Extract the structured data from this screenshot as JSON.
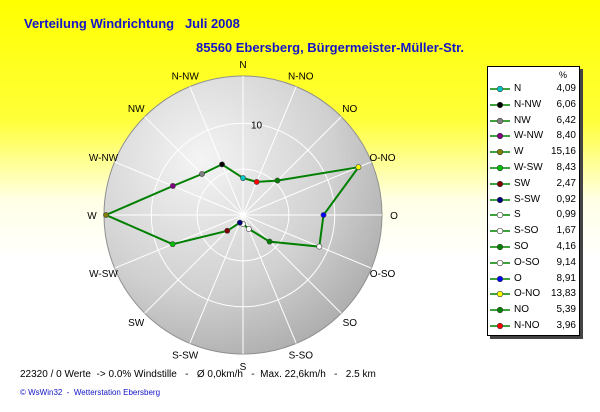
{
  "title": "Verteilung Windrichtung   Juli 2008",
  "subtitle": "85560 Ebersberg, Bürgermeister-Müller-Str.",
  "chart_data": {
    "type": "radar",
    "directions": [
      "N",
      "N-NO",
      "NO",
      "O-NO",
      "O",
      "O-SO",
      "SO",
      "S-SO",
      "S",
      "S-SW",
      "SW",
      "W-SW",
      "W",
      "W-NW",
      "NW",
      "N-NW"
    ],
    "values": [
      4.09,
      3.96,
      5.39,
      13.83,
      8.91,
      9.14,
      4.16,
      1.67,
      0.99,
      0.92,
      2.47,
      8.43,
      15.16,
      8.4,
      6.42,
      6.06
    ],
    "rmax": 15.16,
    "ring_label": "10",
    "grid": true,
    "legend_position": "right",
    "line_color": "#008000"
  },
  "legend": {
    "unit": "%",
    "items": [
      {
        "name": "N",
        "value": "4,09",
        "color": "#00c8c8"
      },
      {
        "name": "N-NW",
        "value": "6,06",
        "color": "#000000"
      },
      {
        "name": "NW",
        "value": "6,42",
        "color": "#808080"
      },
      {
        "name": "W-NW",
        "value": "8,40",
        "color": "#800080"
      },
      {
        "name": "W",
        "value": "15,16",
        "color": "#808000"
      },
      {
        "name": "W-SW",
        "value": "8,43",
        "color": "#00c000"
      },
      {
        "name": "SW",
        "value": "2,47",
        "color": "#800000"
      },
      {
        "name": "S-SW",
        "value": "0,92",
        "color": "#000080"
      },
      {
        "name": "S",
        "value": "0,99",
        "color": "#ffffff"
      },
      {
        "name": "S-SO",
        "value": "1,67",
        "color": "#ffffff"
      },
      {
        "name": "SO",
        "value": "4,16",
        "color": "#008000"
      },
      {
        "name": "O-SO",
        "value": "9,14",
        "color": "#ffffff"
      },
      {
        "name": "O",
        "value": "8,91",
        "color": "#0000ff"
      },
      {
        "name": "O-NO",
        "value": "13,83",
        "color": "#ffff00"
      },
      {
        "name": "NO",
        "value": "5,39",
        "color": "#008000"
      },
      {
        "name": "N-NO",
        "value": "3,96",
        "color": "#ff0000"
      }
    ]
  },
  "footer": "22320 / 0 Werte  -> 0.0% Windstille   -   Ø 0,0km/h   -  Max. 22,6km/h   -   2.5 km",
  "credit": "© WsWin32  -  Wetterstation Ebersberg"
}
